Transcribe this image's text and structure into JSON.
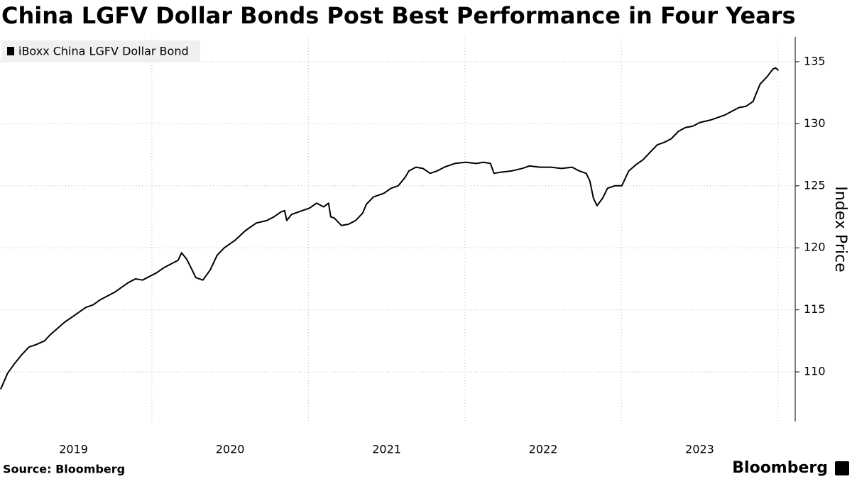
{
  "chart_data": {
    "type": "line",
    "title": "China LGFV Dollar Bonds Post Best Performance in Four Years",
    "ylabel": "Index Price",
    "source": "Source: Bloomberg",
    "brand": "Bloomberg",
    "x": [
      2019.034,
      2019.079,
      2019.125,
      2019.17,
      2019.215,
      2019.261,
      2019.315,
      2019.351,
      2019.397,
      2019.442,
      2019.488,
      2019.533,
      2019.578,
      2019.624,
      2019.669,
      2019.714,
      2019.76,
      2019.805,
      2019.85,
      2019.896,
      2019.941,
      2019.986,
      2020.032,
      2020.077,
      2020.122,
      2020.168,
      2020.19,
      2020.222,
      2020.258,
      2020.281,
      2020.326,
      2020.372,
      2020.417,
      2020.463,
      2020.531,
      2020.599,
      2020.667,
      2020.735,
      2020.78,
      2020.825,
      2020.848,
      2020.862,
      2020.893,
      2020.961,
      2021.007,
      2021.052,
      2021.097,
      2021.129,
      2021.143,
      2021.166,
      2021.211,
      2021.256,
      2021.302,
      2021.347,
      2021.37,
      2021.415,
      2021.483,
      2021.528,
      2021.574,
      2021.619,
      2021.642,
      2021.687,
      2021.732,
      2021.778,
      2021.823,
      2021.868,
      2021.936,
      2022.004,
      2022.073,
      2022.118,
      2022.163,
      2022.186,
      2022.231,
      2022.299,
      2022.367,
      2022.413,
      2022.481,
      2022.549,
      2022.617,
      2022.685,
      2022.73,
      2022.775,
      2022.798,
      2022.821,
      2022.844,
      2022.88,
      2022.911,
      2022.957,
      2023.002,
      2023.047,
      2023.093,
      2023.138,
      2023.183,
      2023.229,
      2023.274,
      2023.319,
      2023.365,
      2023.41,
      2023.455,
      2023.501,
      2023.569,
      2023.614,
      2023.66,
      2023.705,
      2023.75,
      2023.795,
      2023.841,
      2023.863,
      2023.886,
      2023.931,
      2023.967,
      2023.985,
      2024.003
    ],
    "series": [
      {
        "name": "iBoxx China LGFV Dollar Bond",
        "color": "#000000",
        "values": [
          108.6,
          109.9,
          110.7,
          111.4,
          112.0,
          112.2,
          112.5,
          113.0,
          113.5,
          114.0,
          114.4,
          114.8,
          115.2,
          115.4,
          115.8,
          116.1,
          116.4,
          116.8,
          117.2,
          117.5,
          117.4,
          117.7,
          118.0,
          118.4,
          118.7,
          119.0,
          119.6,
          119.1,
          118.2,
          117.6,
          117.4,
          118.2,
          119.4,
          120.0,
          120.6,
          121.4,
          122.0,
          122.2,
          122.5,
          122.9,
          123.0,
          122.2,
          122.7,
          123.0,
          123.2,
          123.6,
          123.3,
          123.6,
          122.5,
          122.4,
          121.8,
          121.9,
          122.2,
          122.8,
          123.5,
          124.1,
          124.4,
          124.8,
          125.0,
          125.7,
          126.2,
          126.5,
          126.4,
          126.0,
          126.2,
          126.5,
          126.8,
          126.9,
          126.8,
          126.9,
          126.8,
          126.0,
          126.1,
          126.2,
          126.4,
          126.6,
          126.5,
          126.5,
          126.4,
          126.5,
          126.2,
          126.0,
          125.4,
          124.0,
          123.4,
          124.0,
          124.8,
          125.0,
          125.0,
          126.2,
          126.7,
          127.1,
          127.7,
          128.3,
          128.5,
          128.8,
          129.4,
          129.7,
          129.8,
          130.1,
          130.3,
          130.5,
          130.7,
          131.0,
          131.3,
          131.4,
          131.8,
          132.5,
          133.2,
          133.8,
          134.4,
          134.5,
          134.3
        ]
      }
    ],
    "xlim": [
      2019.03,
      2024.11
    ],
    "xticks": [
      {
        "value": 2019.5,
        "label": "2019"
      },
      {
        "value": 2020.5,
        "label": "2020"
      },
      {
        "value": 2021.5,
        "label": "2021"
      },
      {
        "value": 2022.5,
        "label": "2022"
      },
      {
        "value": 2023.5,
        "label": "2023"
      }
    ],
    "xgrid": [
      2020,
      2021,
      2022,
      2023,
      2024
    ],
    "ylim": [
      106,
      137
    ],
    "yticks": [
      110,
      115,
      120,
      125,
      130,
      135
    ],
    "grid": true,
    "legend": "top-left"
  }
}
